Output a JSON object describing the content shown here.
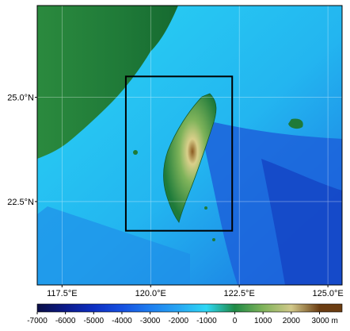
{
  "map": {
    "lat_labels": [
      {
        "text": "25.0°N",
        "lat": 25.0
      },
      {
        "text": "22.5°N",
        "lat": 22.5
      }
    ],
    "lon_labels": [
      {
        "text": "117.5°E",
        "lon": 117.5
      },
      {
        "text": "120.0°E",
        "lon": 120.0
      },
      {
        "text": "122.5°E",
        "lon": 122.5
      },
      {
        "text": "125.0°E",
        "lon": 125.0
      }
    ],
    "extent": {
      "lon_min": 116.8,
      "lon_max": 125.4,
      "lat_min": 20.5,
      "lat_max": 27.2
    },
    "study_box": {
      "lon_min": 119.3,
      "lon_max": 122.3,
      "lat_min": 21.8,
      "lat_max": 25.5
    },
    "colors": {
      "deep_ocean": "#0a1a78",
      "ocean_mid": "#1b6fe0",
      "shelf": "#2ee6f2",
      "lowland": "#1e7a3a",
      "highland": "#d9cf8a",
      "peak": "#7a4a1c",
      "box": "#000000"
    }
  },
  "colorbar": {
    "ticks": [
      "-7000",
      "-6000",
      "-5000",
      "-4000",
      "-3000",
      "-2000",
      "-1000",
      "0",
      "1000",
      "2000",
      "3000 m"
    ],
    "stops": [
      {
        "value": -7000,
        "color": "#0b0f45"
      },
      {
        "value": -6000,
        "color": "#0b1a8a"
      },
      {
        "value": -5000,
        "color": "#0d2fc2"
      },
      {
        "value": -4000,
        "color": "#1650e0"
      },
      {
        "value": -3000,
        "color": "#1e7ef0"
      },
      {
        "value": -2000,
        "color": "#27a6f3"
      },
      {
        "value": -1000,
        "color": "#2ed8f5"
      },
      {
        "value": 0,
        "color": "#1f8a45"
      },
      {
        "value": 1000,
        "color": "#7fb35a"
      },
      {
        "value": 2000,
        "color": "#d2c98a"
      },
      {
        "value": 3000,
        "color": "#6b3d12"
      }
    ],
    "min": -7000,
    "max": 3800
  }
}
